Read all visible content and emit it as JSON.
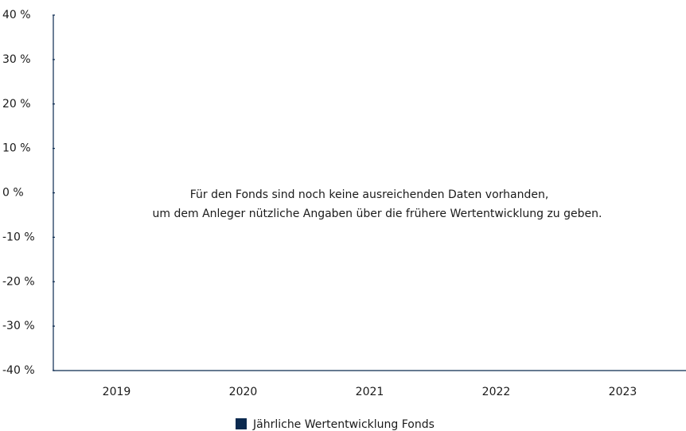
{
  "chart_data": {
    "type": "bar",
    "categories": [
      "2019",
      "2020",
      "2021",
      "2022",
      "2023"
    ],
    "series": [
      {
        "name": "Jährliche Wertentwicklung Fonds",
        "color": "#0b2a4f",
        "values": [
          null,
          null,
          null,
          null,
          null
        ]
      }
    ],
    "ylim": [
      -40,
      40
    ],
    "yticks": [
      {
        "value": -40,
        "label": "-40 %"
      },
      {
        "value": -30,
        "label": "-30 %"
      },
      {
        "value": -20,
        "label": "-20 %"
      },
      {
        "value": -10,
        "label": "-10 %"
      },
      {
        "value": 0,
        "label": "0 %"
      },
      {
        "value": 10,
        "label": "10 %"
      },
      {
        "value": 20,
        "label": "20 %"
      },
      {
        "value": 30,
        "label": "30 %"
      },
      {
        "value": 40,
        "label": "40 %"
      }
    ],
    "annotations": [
      "Für den Fonds sind noch keine ausreichenden Daten vorhanden,",
      "um dem Anleger nützliche Angaben über die frühere Wertentwicklung zu geben."
    ],
    "legend": "bottom",
    "grid": false
  }
}
